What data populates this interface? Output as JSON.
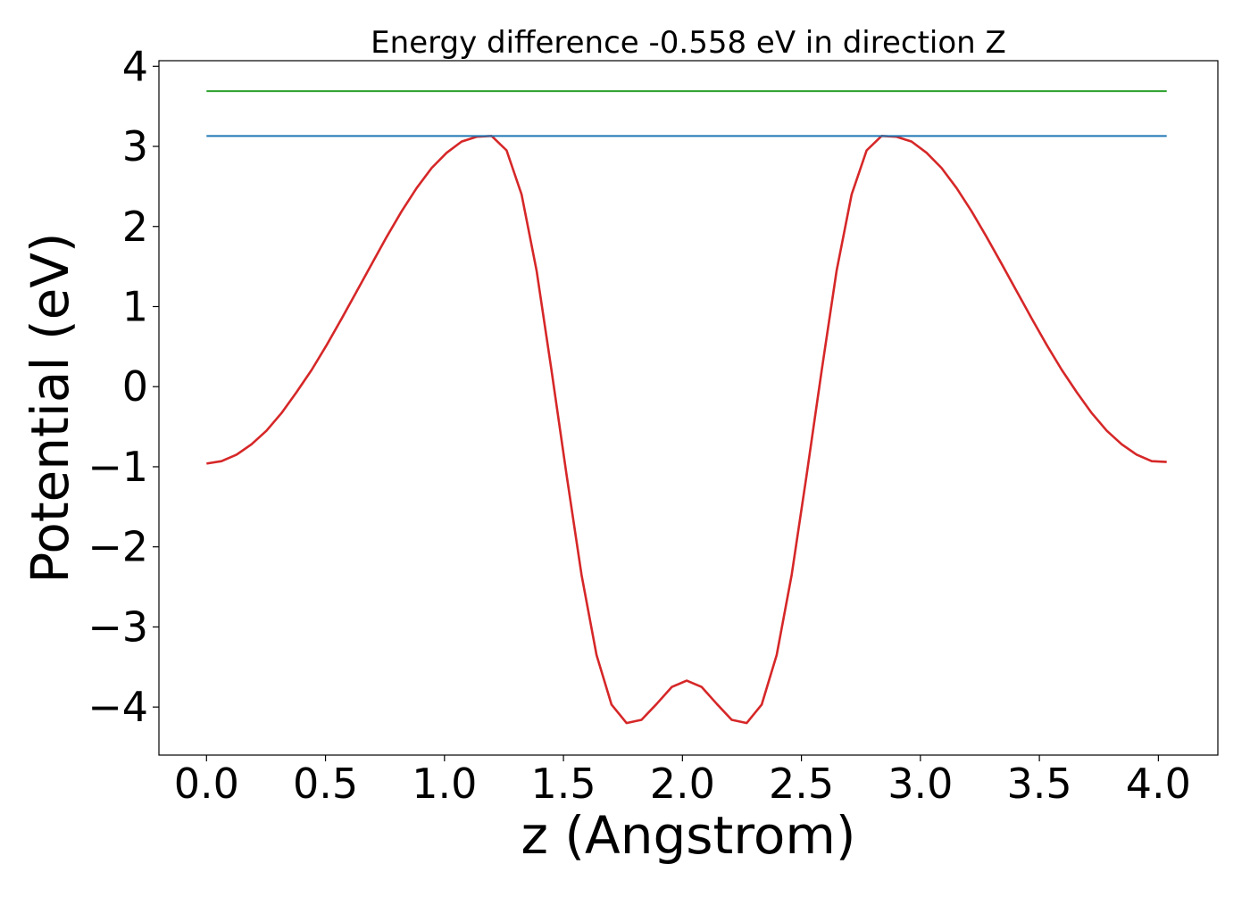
{
  "chart_data": {
    "type": "line",
    "title": "Energy difference -0.558 eV in direction Z",
    "xlabel": "z (Angstrom)",
    "ylabel": "Potential (eV)",
    "xlim": [
      -0.2,
      4.25
    ],
    "ylim": [
      -4.6,
      4.07
    ],
    "xticks": [
      {
        "value": 0.0,
        "label": "0.0"
      },
      {
        "value": 0.5,
        "label": "0.5"
      },
      {
        "value": 1.0,
        "label": "1.0"
      },
      {
        "value": 1.5,
        "label": "1.5"
      },
      {
        "value": 2.0,
        "label": "2.0"
      },
      {
        "value": 2.5,
        "label": "2.5"
      },
      {
        "value": 3.0,
        "label": "3.0"
      },
      {
        "value": 3.5,
        "label": "3.5"
      },
      {
        "value": 4.0,
        "label": "4.0"
      }
    ],
    "yticks": [
      {
        "value": 4,
        "label": "4"
      },
      {
        "value": 3,
        "label": "3"
      },
      {
        "value": 2,
        "label": "2"
      },
      {
        "value": 1,
        "label": "1"
      },
      {
        "value": 0,
        "label": "0"
      },
      {
        "value": -1,
        "label": "−1"
      },
      {
        "value": -2,
        "label": "−2"
      },
      {
        "value": -3,
        "label": "−3"
      },
      {
        "value": -4,
        "label": "−4"
      }
    ],
    "grid": false,
    "legend": "none",
    "series": [
      {
        "color": "#d62728",
        "kind": "curve",
        "x": [
          0.0,
          0.063,
          0.126,
          0.189,
          0.252,
          0.315,
          0.378,
          0.442,
          0.505,
          0.568,
          0.631,
          0.694,
          0.757,
          0.82,
          0.883,
          0.946,
          1.009,
          1.072,
          1.135,
          1.198,
          1.261,
          1.324,
          1.387,
          1.45,
          1.513,
          1.576,
          1.639,
          1.702,
          1.765,
          1.828,
          1.892,
          1.955,
          2.018,
          2.081,
          2.144,
          2.207,
          2.27,
          2.333,
          2.396,
          2.459,
          2.522,
          2.585,
          2.648,
          2.711,
          2.774,
          2.837,
          2.9,
          2.963,
          3.026,
          3.089,
          3.152,
          3.215,
          3.278,
          3.342,
          3.405,
          3.468,
          3.531,
          3.594,
          3.657,
          3.72,
          3.783,
          3.846,
          3.909,
          3.972,
          4.035
        ],
        "y": [
          -0.96,
          -0.93,
          -0.85,
          -0.72,
          -0.55,
          -0.33,
          -0.07,
          0.21,
          0.52,
          0.85,
          1.19,
          1.53,
          1.87,
          2.19,
          2.48,
          2.73,
          2.92,
          3.06,
          3.12,
          3.13,
          2.95,
          2.4,
          1.45,
          0.2,
          -1.1,
          -2.35,
          -3.35,
          -3.97,
          -4.2,
          -4.16,
          -3.96,
          -3.75,
          -3.67,
          -3.75,
          -3.96,
          -4.16,
          -4.2,
          -3.97,
          -3.35,
          -2.35,
          -1.1,
          0.2,
          1.45,
          2.4,
          2.95,
          3.13,
          3.12,
          3.06,
          2.92,
          2.73,
          2.48,
          2.19,
          1.87,
          1.53,
          1.19,
          0.85,
          0.52,
          0.21,
          -0.07,
          -0.33,
          -0.55,
          -0.72,
          -0.85,
          -0.93,
          -0.94
        ]
      },
      {
        "color": "#1f77b4",
        "kind": "level",
        "x": [
          0.0,
          4.035
        ],
        "y": [
          3.13,
          3.13
        ]
      },
      {
        "color": "#2ca02c",
        "kind": "level",
        "x": [
          0.0,
          4.035
        ],
        "y": [
          3.69,
          3.69
        ]
      }
    ]
  }
}
